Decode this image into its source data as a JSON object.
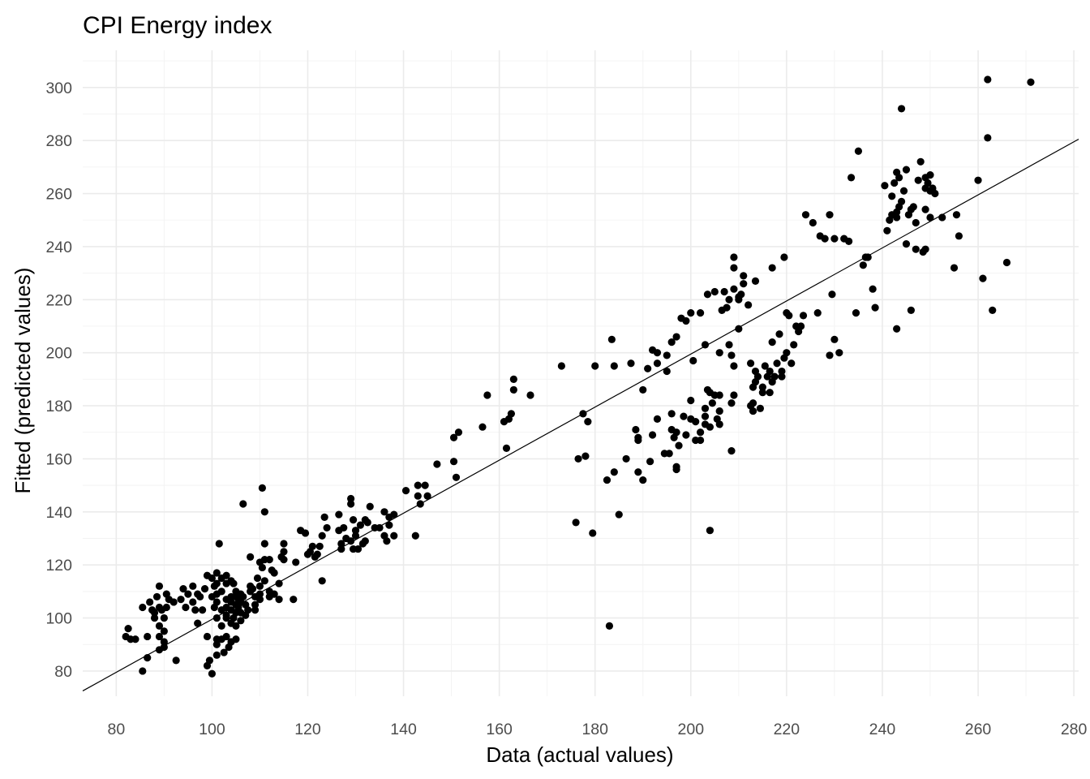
{
  "chart_data": {
    "type": "scatter",
    "title": "CPI Energy index",
    "xlabel": "Data (actual values)",
    "ylabel": "Fitted (predicted values)",
    "xlim": [
      73,
      281
    ],
    "ylim": [
      70.5,
      314
    ],
    "x_ticks": [
      80,
      100,
      120,
      140,
      160,
      180,
      200,
      220,
      240,
      260,
      280
    ],
    "y_ticks": [
      80,
      100,
      120,
      140,
      160,
      180,
      200,
      220,
      240,
      260,
      280,
      300
    ],
    "grid": true,
    "point_color": "#000000",
    "fit_line": {
      "x": [
        73,
        281
      ],
      "y": [
        72.5,
        280.5
      ]
    },
    "points": [
      [
        82,
        93
      ],
      [
        82.5,
        96
      ],
      [
        83,
        92
      ],
      [
        84,
        92
      ],
      [
        85.5,
        104
      ],
      [
        85.5,
        80
      ],
      [
        86.5,
        85
      ],
      [
        86.5,
        93
      ],
      [
        87,
        106
      ],
      [
        87.5,
        103
      ],
      [
        88,
        102
      ],
      [
        88,
        100
      ],
      [
        88.5,
        108
      ],
      [
        89,
        112
      ],
      [
        89,
        104
      ],
      [
        89,
        97
      ],
      [
        89,
        93
      ],
      [
        89,
        88
      ],
      [
        89.5,
        103
      ],
      [
        90,
        100
      ],
      [
        90,
        95
      ],
      [
        90,
        91
      ],
      [
        90,
        89
      ],
      [
        90.5,
        109
      ],
      [
        90.5,
        104
      ],
      [
        91,
        107
      ],
      [
        92,
        106
      ],
      [
        92.5,
        84
      ],
      [
        93.5,
        107
      ],
      [
        94,
        111
      ],
      [
        94.5,
        104
      ],
      [
        95,
        109
      ],
      [
        96,
        112
      ],
      [
        96,
        106
      ],
      [
        96.5,
        103
      ],
      [
        97,
        109
      ],
      [
        97,
        98
      ],
      [
        97.5,
        108
      ],
      [
        98,
        103
      ],
      [
        98.5,
        111
      ],
      [
        99,
        116
      ],
      [
        99,
        93
      ],
      [
        99,
        82
      ],
      [
        99.5,
        84
      ],
      [
        100,
        79
      ],
      [
        100,
        115
      ],
      [
        100,
        108
      ],
      [
        100.5,
        112
      ],
      [
        100.5,
        104
      ],
      [
        101,
        117
      ],
      [
        101,
        113
      ],
      [
        101,
        109
      ],
      [
        101,
        106
      ],
      [
        101,
        100
      ],
      [
        101,
        92
      ],
      [
        101,
        90
      ],
      [
        101,
        86
      ],
      [
        101.5,
        128
      ],
      [
        102,
        115
      ],
      [
        102,
        110
      ],
      [
        102,
        103
      ],
      [
        102,
        97
      ],
      [
        102,
        92
      ],
      [
        102.5,
        87
      ],
      [
        103,
        116
      ],
      [
        103,
        113
      ],
      [
        103,
        107
      ],
      [
        103,
        104
      ],
      [
        103,
        101
      ],
      [
        103,
        100
      ],
      [
        103,
        93
      ],
      [
        103.5,
        89
      ],
      [
        104,
        114
      ],
      [
        104,
        108
      ],
      [
        104,
        106
      ],
      [
        104,
        103
      ],
      [
        104,
        98
      ],
      [
        104,
        91
      ],
      [
        104.5,
        113
      ],
      [
        104.5,
        100
      ],
      [
        105,
        110
      ],
      [
        105,
        108
      ],
      [
        105,
        105
      ],
      [
        105,
        102
      ],
      [
        105,
        97
      ],
      [
        105,
        92
      ],
      [
        105.5,
        107
      ],
      [
        105.5,
        104
      ],
      [
        106,
        109
      ],
      [
        106,
        106
      ],
      [
        106,
        102
      ],
      [
        106,
        99
      ],
      [
        106.5,
        143
      ],
      [
        106.5,
        108
      ],
      [
        107,
        105
      ],
      [
        107,
        101
      ],
      [
        107.5,
        103
      ],
      [
        108,
        112
      ],
      [
        108,
        110
      ],
      [
        108,
        123
      ],
      [
        108.5,
        111
      ],
      [
        109,
        108
      ],
      [
        109,
        105
      ],
      [
        109,
        103
      ],
      [
        109.5,
        115
      ],
      [
        110,
        121
      ],
      [
        110,
        112
      ],
      [
        110,
        109
      ],
      [
        110,
        107
      ],
      [
        110.5,
        119
      ],
      [
        110.5,
        149
      ],
      [
        111,
        128
      ],
      [
        111,
        122
      ],
      [
        111,
        140
      ],
      [
        111,
        114
      ],
      [
        112,
        122
      ],
      [
        112,
        110
      ],
      [
        112,
        108
      ],
      [
        112.5,
        118
      ],
      [
        113,
        117
      ],
      [
        113,
        109
      ],
      [
        114,
        113
      ],
      [
        114,
        107
      ],
      [
        114.5,
        123
      ],
      [
        115,
        125
      ],
      [
        115,
        122
      ],
      [
        115,
        128
      ],
      [
        117,
        107
      ],
      [
        117.5,
        121
      ],
      [
        118.5,
        133
      ],
      [
        119.5,
        132
      ],
      [
        120,
        124
      ],
      [
        120.5,
        125
      ],
      [
        121,
        127
      ],
      [
        121.5,
        123
      ],
      [
        122,
        124
      ],
      [
        122.5,
        127
      ],
      [
        123,
        114
      ],
      [
        123,
        131
      ],
      [
        123.5,
        138
      ],
      [
        124,
        134
      ],
      [
        126.5,
        139
      ],
      [
        126.5,
        133
      ],
      [
        127,
        128
      ],
      [
        127,
        126
      ],
      [
        127.5,
        134
      ],
      [
        128,
        130
      ],
      [
        129,
        145
      ],
      [
        129,
        143
      ],
      [
        129,
        129
      ],
      [
        129.5,
        126
      ],
      [
        129.5,
        137
      ],
      [
        130,
        131
      ],
      [
        130,
        133
      ],
      [
        130.5,
        126
      ],
      [
        131,
        135
      ],
      [
        131.5,
        128
      ],
      [
        132,
        129
      ],
      [
        132,
        137
      ],
      [
        132.5,
        136
      ],
      [
        133,
        142
      ],
      [
        134,
        134
      ],
      [
        135,
        134
      ],
      [
        136,
        140
      ],
      [
        136,
        131
      ],
      [
        136.5,
        129
      ],
      [
        137,
        138
      ],
      [
        137,
        135
      ],
      [
        138,
        139
      ],
      [
        138,
        131
      ],
      [
        140.5,
        148
      ],
      [
        142.5,
        131
      ],
      [
        143,
        150
      ],
      [
        143,
        146
      ],
      [
        143.5,
        143
      ],
      [
        144.5,
        150
      ],
      [
        145,
        146
      ],
      [
        147,
        158
      ],
      [
        150.5,
        159
      ],
      [
        150.5,
        168
      ],
      [
        151,
        153
      ],
      [
        151.5,
        170
      ],
      [
        156.5,
        172
      ],
      [
        157.5,
        184
      ],
      [
        161,
        174
      ],
      [
        161.5,
        164
      ],
      [
        162,
        175
      ],
      [
        162.5,
        177
      ],
      [
        163,
        190
      ],
      [
        163,
        186
      ],
      [
        166.5,
        184
      ],
      [
        173,
        195
      ],
      [
        176,
        136
      ],
      [
        176.5,
        160
      ],
      [
        177.5,
        177
      ],
      [
        178,
        161
      ],
      [
        178.5,
        174
      ],
      [
        179.5,
        132
      ],
      [
        180,
        195
      ],
      [
        182.5,
        152
      ],
      [
        183,
        97
      ],
      [
        183.5,
        205
      ],
      [
        184,
        155
      ],
      [
        184,
        195
      ],
      [
        185,
        139
      ],
      [
        186.5,
        160
      ],
      [
        187.5,
        196
      ],
      [
        188.5,
        171
      ],
      [
        189,
        167
      ],
      [
        189,
        168
      ],
      [
        189,
        155
      ],
      [
        190,
        152
      ],
      [
        190,
        186
      ],
      [
        191,
        194
      ],
      [
        191.5,
        159
      ],
      [
        192,
        201
      ],
      [
        192,
        169
      ],
      [
        193,
        200
      ],
      [
        193,
        196
      ],
      [
        193,
        175
      ],
      [
        194.5,
        162
      ],
      [
        195,
        199
      ],
      [
        195,
        193
      ],
      [
        195.5,
        162
      ],
      [
        196,
        204
      ],
      [
        196,
        177
      ],
      [
        196,
        171
      ],
      [
        196.5,
        168
      ],
      [
        197,
        206
      ],
      [
        197,
        170
      ],
      [
        197,
        157
      ],
      [
        197,
        156
      ],
      [
        197.5,
        165
      ],
      [
        198,
        213
      ],
      [
        198.5,
        176
      ],
      [
        199,
        169
      ],
      [
        199,
        212
      ],
      [
        200,
        182
      ],
      [
        200,
        215
      ],
      [
        200,
        175
      ],
      [
        200.5,
        197
      ],
      [
        201,
        167
      ],
      [
        201,
        174
      ],
      [
        202,
        215
      ],
      [
        202,
        170
      ],
      [
        202,
        167
      ],
      [
        203,
        176
      ],
      [
        203,
        173
      ],
      [
        203,
        179
      ],
      [
        203,
        203
      ],
      [
        203.5,
        186
      ],
      [
        203.5,
        222
      ],
      [
        204,
        133
      ],
      [
        204,
        185
      ],
      [
        204,
        172
      ],
      [
        204.5,
        181
      ],
      [
        205,
        184
      ],
      [
        205,
        223
      ],
      [
        205.5,
        175
      ],
      [
        206,
        184
      ],
      [
        206,
        178
      ],
      [
        206,
        173
      ],
      [
        206,
        200
      ],
      [
        206.5,
        216
      ],
      [
        207,
        223
      ],
      [
        207.5,
        217
      ],
      [
        208,
        220
      ],
      [
        208,
        203
      ],
      [
        208.5,
        181
      ],
      [
        208.5,
        163
      ],
      [
        208.5,
        199
      ],
      [
        209,
        195
      ],
      [
        209,
        184
      ],
      [
        209,
        232
      ],
      [
        209,
        236
      ],
      [
        209,
        224
      ],
      [
        210,
        209
      ],
      [
        210,
        221
      ],
      [
        210,
        220
      ],
      [
        210.5,
        222
      ],
      [
        211,
        229
      ],
      [
        211,
        226
      ],
      [
        212,
        218
      ],
      [
        212.5,
        196
      ],
      [
        212.5,
        180
      ],
      [
        213,
        178
      ],
      [
        213,
        181
      ],
      [
        213,
        187
      ],
      [
        213.5,
        227
      ],
      [
        213.5,
        189
      ],
      [
        213.5,
        193
      ],
      [
        214,
        191
      ],
      [
        214.5,
        179
      ],
      [
        215,
        187
      ],
      [
        215,
        185
      ],
      [
        215.5,
        195
      ],
      [
        216,
        191
      ],
      [
        216.5,
        193
      ],
      [
        216.5,
        185
      ],
      [
        217,
        232
      ],
      [
        217,
        204
      ],
      [
        217,
        189
      ],
      [
        217.5,
        191
      ],
      [
        218,
        196
      ],
      [
        218.5,
        207
      ],
      [
        219,
        191
      ],
      [
        219,
        193
      ],
      [
        219.5,
        236
      ],
      [
        219.5,
        198
      ],
      [
        220,
        200
      ],
      [
        220,
        215
      ],
      [
        220.5,
        214
      ],
      [
        221,
        196
      ],
      [
        221.5,
        203
      ],
      [
        222,
        210
      ],
      [
        222.5,
        208
      ],
      [
        223,
        210
      ],
      [
        223.5,
        214
      ],
      [
        224,
        252
      ],
      [
        225.5,
        249
      ],
      [
        226.5,
        215
      ],
      [
        227,
        244
      ],
      [
        228,
        243
      ],
      [
        229,
        199
      ],
      [
        229,
        252
      ],
      [
        229.5,
        222
      ],
      [
        230,
        205
      ],
      [
        230,
        243
      ],
      [
        231,
        200
      ],
      [
        232,
        243
      ],
      [
        233,
        242
      ],
      [
        233.5,
        266
      ],
      [
        234.5,
        215
      ],
      [
        235,
        276
      ],
      [
        236,
        233
      ],
      [
        236.5,
        236
      ],
      [
        237,
        236
      ],
      [
        238,
        224
      ],
      [
        238.5,
        217
      ],
      [
        240.5,
        263
      ],
      [
        241,
        246
      ],
      [
        241.5,
        250
      ],
      [
        242,
        252
      ],
      [
        242,
        259
      ],
      [
        242.5,
        264
      ],
      [
        243,
        268
      ],
      [
        243,
        253
      ],
      [
        243,
        251
      ],
      [
        243,
        209
      ],
      [
        243.5,
        266
      ],
      [
        243.5,
        255
      ],
      [
        244,
        292
      ],
      [
        244,
        257
      ],
      [
        244.5,
        261
      ],
      [
        245,
        269
      ],
      [
        245,
        241
      ],
      [
        245.5,
        252
      ],
      [
        246,
        216
      ],
      [
        246,
        254
      ],
      [
        246.5,
        255
      ],
      [
        247,
        249
      ],
      [
        247,
        239
      ],
      [
        247.5,
        265
      ],
      [
        248,
        272
      ],
      [
        248.5,
        238
      ],
      [
        249,
        239
      ],
      [
        249,
        254
      ],
      [
        249,
        262
      ],
      [
        249,
        266
      ],
      [
        249.5,
        264
      ],
      [
        250,
        267
      ],
      [
        250,
        261
      ],
      [
        250,
        251
      ],
      [
        250.5,
        262
      ],
      [
        251,
        260
      ],
      [
        252.5,
        251
      ],
      [
        255,
        232
      ],
      [
        255.5,
        252
      ],
      [
        256,
        244
      ],
      [
        260,
        265
      ],
      [
        261,
        228
      ],
      [
        262,
        303
      ],
      [
        262,
        281
      ],
      [
        263,
        216
      ],
      [
        266,
        234
      ],
      [
        271,
        302
      ]
    ]
  }
}
